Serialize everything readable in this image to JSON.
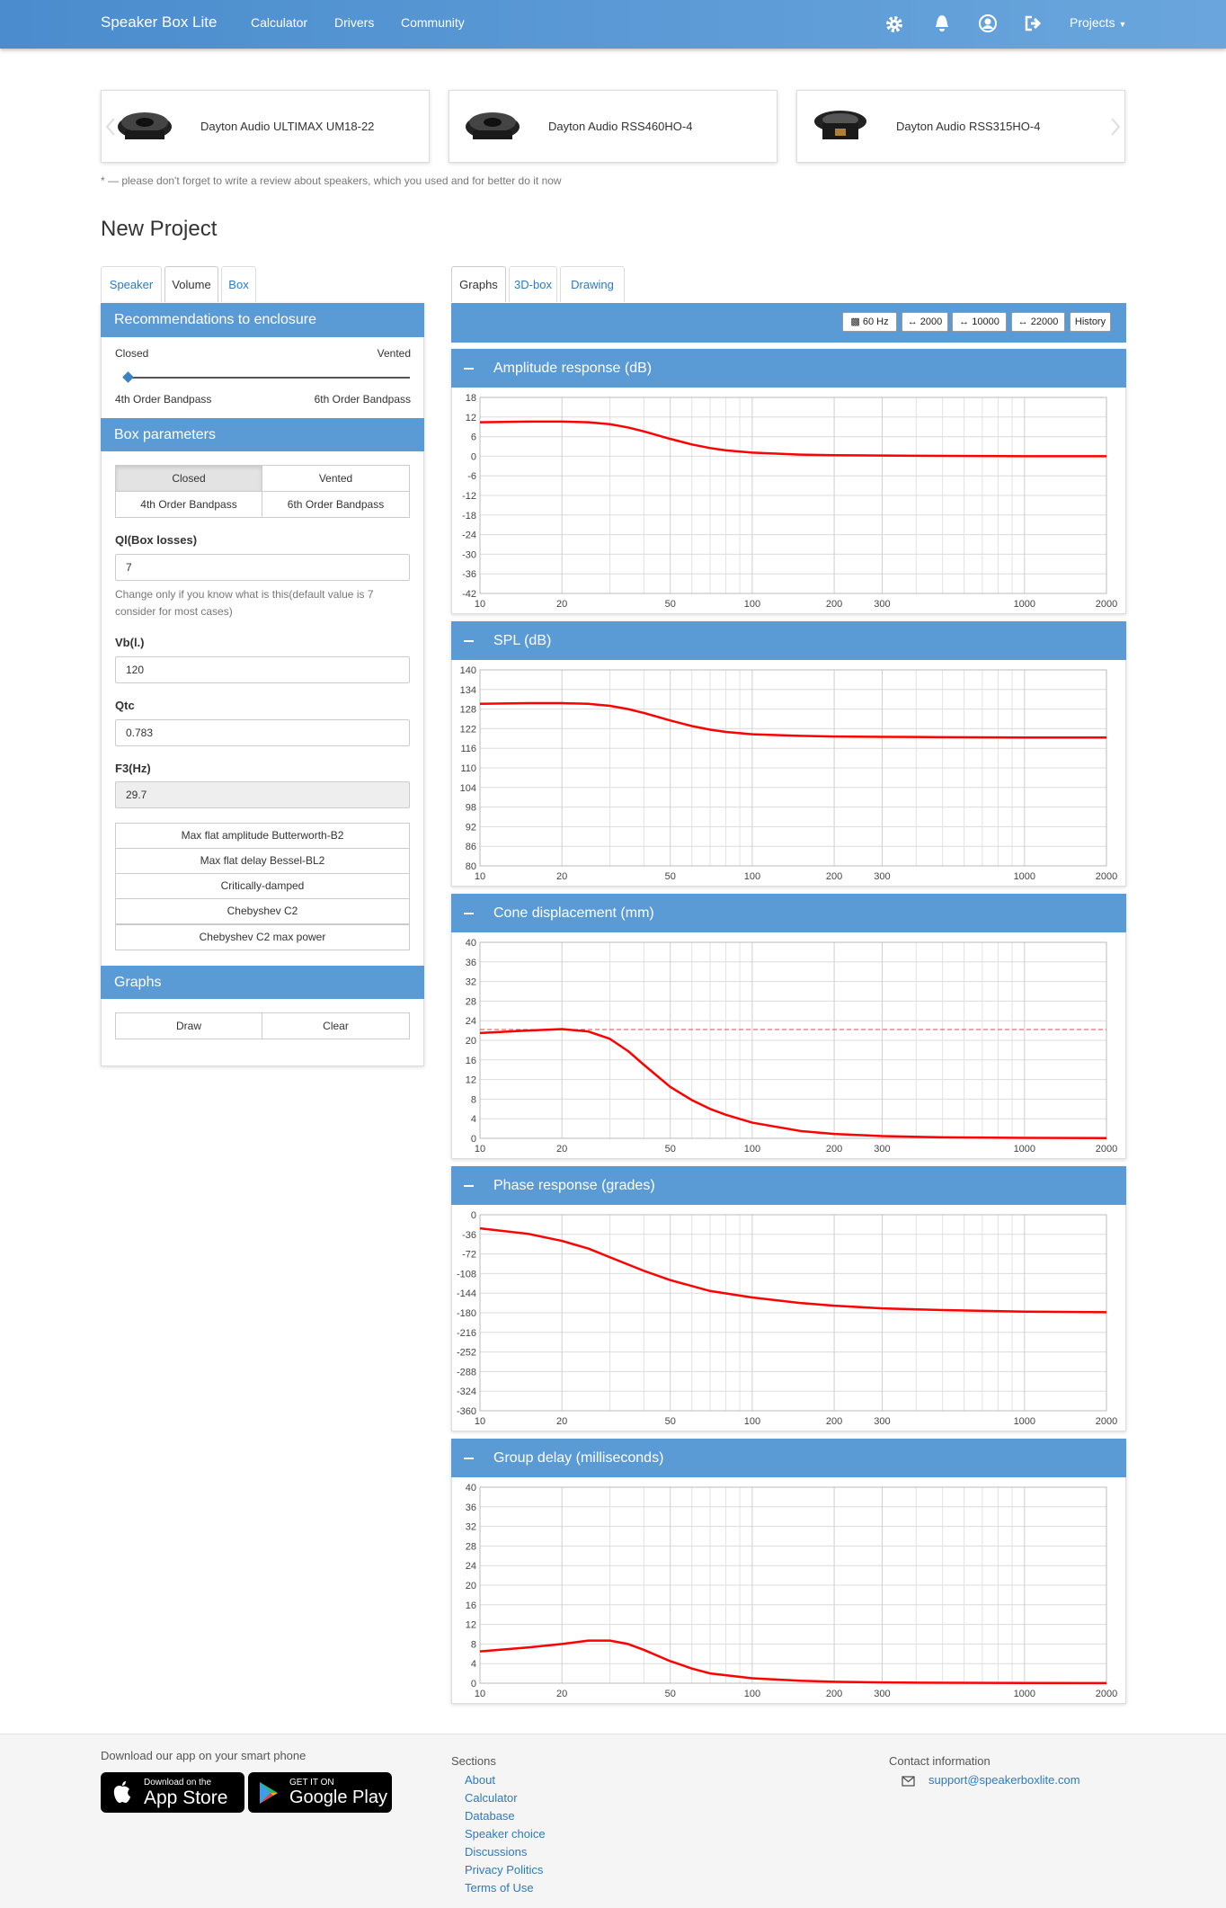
{
  "navbar": {
    "brand": "Speaker Box Lite",
    "links": [
      "Calculator",
      "Drivers",
      "Community"
    ],
    "projects": "Projects"
  },
  "speakers": [
    "Dayton Audio ULTIMAX UM18-22",
    "Dayton Audio RSS460HO-4",
    "Dayton Audio RSS315HO-4"
  ],
  "note": "* — please don't forget to write a review about speakers, which you used and for better do it now",
  "page_title": "New Project",
  "left_tabs": [
    "Speaker",
    "Volume",
    "Box"
  ],
  "recommendations": {
    "title": "Recommendations to enclosure",
    "top_left": "Closed",
    "top_right": "Vented",
    "bottom_left": "4th Order Bandpass",
    "bottom_right": "6th Order Bandpass"
  },
  "box_parameters": {
    "title": "Box parameters",
    "types": [
      "Closed",
      "Vented",
      "4th Order Bandpass",
      "6th Order Bandpass"
    ],
    "fields": [
      {
        "label": "Ql(Box losses)",
        "value": 7,
        "help": "Change only if you know what is this(default value is 7 consider for most cases)"
      },
      {
        "label": "Vb(l.)",
        "value": 120
      },
      {
        "label": "Qtc",
        "value": 0.783
      },
      {
        "label": "F3(Hz)",
        "value": 29.7
      }
    ],
    "alignments": [
      "Max flat amplitude Butterworth-B2",
      "Max flat delay Bessel-BL2",
      "Critically-damped",
      "Chebyshev C2",
      "Chebyshev C2 max power"
    ]
  },
  "graphs_panel": {
    "title": "Graphs",
    "buttons": [
      "Draw",
      "Clear"
    ]
  },
  "right_tabs": [
    "Graphs",
    "3D-box",
    "Drawing"
  ],
  "toolbar": [
    "60 Hz",
    "2000",
    "10000",
    "22000",
    "History"
  ],
  "footer": {
    "app_text": "Download our app on your smart phone",
    "app_store": {
      "small": "Download on the",
      "big": "App Store"
    },
    "google_play": {
      "small": "GET IT ON",
      "big": "Google Play"
    },
    "sections_title": "Sections",
    "sections": [
      "About",
      "Calculator",
      "Database",
      "Speaker choice",
      "Discussions",
      "Privacy Politics",
      "Terms of Use"
    ],
    "contact_title": "Contact information",
    "email": "support@speakerboxlite.com"
  },
  "chart_data": [
    {
      "type": "line",
      "title": "Amplitude response (dB)",
      "xscale": "log",
      "xlim": [
        10,
        2000
      ],
      "xticks": [
        10,
        20,
        50,
        100,
        200,
        300,
        1000,
        2000
      ],
      "xminor": [
        30,
        40,
        60,
        70,
        80,
        90,
        400,
        500,
        600,
        700,
        800,
        900
      ],
      "ylim": [
        -42,
        18
      ],
      "yticks": [
        18,
        12,
        6,
        0,
        -6,
        -12,
        -18,
        -24,
        -30,
        -36,
        -42
      ],
      "color": "#ff0000",
      "x": [
        10,
        15,
        20,
        25,
        30,
        35,
        40,
        45,
        50,
        60,
        70,
        80,
        100,
        150,
        200,
        300,
        500,
        1000,
        2000
      ],
      "values": [
        10.4,
        10.6,
        10.6,
        10.4,
        9.8,
        8.8,
        7.6,
        6.4,
        5.3,
        3.6,
        2.5,
        1.8,
        1.1,
        0.5,
        0.3,
        0.2,
        0.1,
        0,
        0
      ]
    },
    {
      "type": "line",
      "title": "SPL (dB)",
      "xscale": "log",
      "xlim": [
        10,
        2000
      ],
      "xticks": [
        10,
        20,
        50,
        100,
        200,
        300,
        1000,
        2000
      ],
      "xminor": [
        30,
        40,
        60,
        70,
        80,
        90,
        400,
        500,
        600,
        700,
        800,
        900
      ],
      "ylim": [
        80,
        140
      ],
      "yticks": [
        140,
        134,
        128,
        122,
        116,
        110,
        104,
        98,
        92,
        86,
        80
      ],
      "color": "#ff0000",
      "x": [
        10,
        15,
        20,
        25,
        30,
        35,
        40,
        45,
        50,
        60,
        70,
        80,
        100,
        150,
        200,
        300,
        500,
        1000,
        2000
      ],
      "values": [
        129.6,
        129.8,
        129.8,
        129.6,
        129.0,
        128.0,
        126.8,
        125.6,
        124.5,
        122.8,
        121.7,
        121.0,
        120.3,
        119.8,
        119.6,
        119.5,
        119.4,
        119.3,
        119.3
      ]
    },
    {
      "type": "line",
      "title": "Cone displacement (mm)",
      "xscale": "log",
      "xlim": [
        10,
        2000
      ],
      "xticks": [
        10,
        20,
        50,
        100,
        200,
        300,
        1000,
        2000
      ],
      "xminor": [
        30,
        40,
        60,
        70,
        80,
        90,
        400,
        500,
        600,
        700,
        800,
        900
      ],
      "ylim": [
        0,
        40
      ],
      "yticks": [
        40,
        36,
        32,
        28,
        24,
        20,
        16,
        12,
        8,
        4,
        0
      ],
      "color": "#ff0000",
      "reference_line": 22.2,
      "reference_color": "#e04848",
      "x": [
        10,
        15,
        20,
        25,
        30,
        35,
        40,
        50,
        60,
        70,
        80,
        100,
        150,
        200,
        300,
        500,
        1000,
        2000
      ],
      "values": [
        21.5,
        22,
        22.3,
        21.8,
        20.3,
        17.8,
        15,
        10.5,
        7.8,
        6,
        4.8,
        3.2,
        1.5,
        0.9,
        0.45,
        0.2,
        0.1,
        0.05
      ]
    },
    {
      "type": "line",
      "title": "Phase response (grades)",
      "xscale": "log",
      "xlim": [
        10,
        2000
      ],
      "xticks": [
        10,
        20,
        50,
        100,
        200,
        300,
        1000,
        2000
      ],
      "xminor": [
        30,
        40,
        60,
        70,
        80,
        90,
        400,
        500,
        600,
        700,
        800,
        900
      ],
      "ylim": [
        -360,
        0
      ],
      "yticks": [
        0,
        -36,
        -72,
        -108,
        -144,
        -180,
        -216,
        -252,
        -288,
        -324,
        -360
      ],
      "color": "#ff0000",
      "x": [
        10,
        15,
        20,
        25,
        30,
        40,
        50,
        70,
        100,
        150,
        200,
        300,
        500,
        1000,
        2000
      ],
      "values": [
        -25,
        -35,
        -48,
        -62,
        -78,
        -103,
        -120,
        -140,
        -152,
        -162,
        -167,
        -172,
        -175,
        -178,
        -179
      ]
    },
    {
      "type": "line",
      "title": "Group delay (milliseconds)",
      "xscale": "log",
      "xlim": [
        10,
        2000
      ],
      "xticks": [
        10,
        20,
        50,
        100,
        200,
        300,
        1000,
        2000
      ],
      "xminor": [
        30,
        40,
        60,
        70,
        80,
        90,
        400,
        500,
        600,
        700,
        800,
        900
      ],
      "ylim": [
        0,
        40
      ],
      "yticks": [
        40,
        36,
        32,
        28,
        24,
        20,
        16,
        12,
        8,
        4,
        0
      ],
      "color": "#ff0000",
      "x": [
        10,
        15,
        20,
        25,
        30,
        35,
        40,
        50,
        60,
        70,
        100,
        150,
        200,
        300,
        500,
        1000,
        2000
      ],
      "values": [
        6.5,
        7.3,
        8,
        8.7,
        8.7,
        8,
        6.8,
        4.5,
        3,
        2,
        1,
        0.5,
        0.3,
        0.15,
        0.1,
        0.05,
        0.02
      ]
    }
  ]
}
